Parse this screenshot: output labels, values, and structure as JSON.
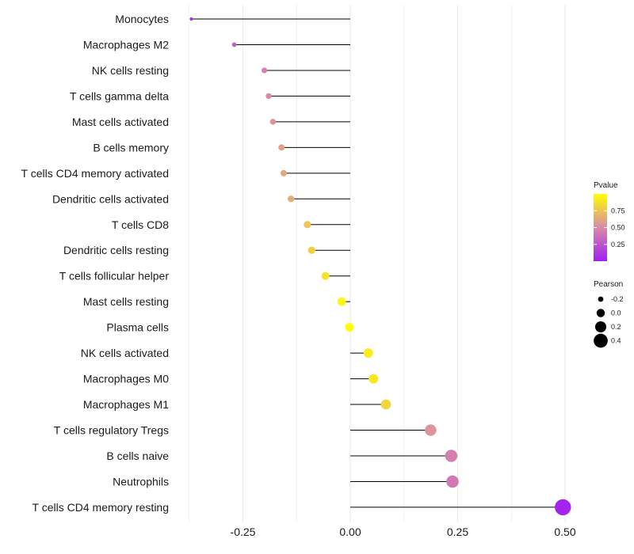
{
  "chart_data": {
    "type": "lollipop",
    "title": "",
    "xlabel": "",
    "ylabel": "",
    "xlim": [
      -0.375,
      0.5
    ],
    "x_ticks": [
      -0.25,
      0.0,
      0.25,
      0.5
    ],
    "x_tick_labels": [
      "-0.25",
      "0.00",
      "0.25",
      "0.50"
    ],
    "grid": true,
    "categories": [
      "Monocytes",
      "Macrophages M2",
      "NK cells resting",
      "T cells gamma delta",
      "Mast cells activated",
      "B cells memory",
      "T cells CD4 memory activated",
      "Dendritic cells activated",
      "T cells CD8",
      "Dendritic cells resting",
      "T cells follicular helper",
      "Mast cells resting",
      "Plasma cells",
      "NK cells activated",
      "Macrophages M0",
      "Macrophages M1",
      "T cells regulatory  Tregs ",
      "B cells naive",
      "Neutrophils",
      "T cells CD4 memory resting"
    ],
    "pearson": [
      -0.37,
      -0.27,
      -0.2,
      -0.19,
      -0.18,
      -0.16,
      -0.155,
      -0.138,
      -0.1,
      -0.09,
      -0.058,
      -0.02,
      -0.002,
      0.042,
      0.054,
      0.083,
      0.187,
      0.235,
      0.238,
      0.495
    ],
    "pvalue": [
      0.05,
      0.3,
      0.45,
      0.5,
      0.55,
      0.6,
      0.62,
      0.65,
      0.75,
      0.8,
      0.88,
      0.96,
      1.0,
      0.92,
      0.9,
      0.82,
      0.55,
      0.45,
      0.42,
      0.02
    ],
    "legend_color": {
      "title": "Pvalue",
      "ticks": [
        0.25,
        0.5,
        0.75
      ],
      "tick_labels": [
        "0.25",
        "0.50",
        "0.75"
      ],
      "range": [
        0.0,
        1.0
      ],
      "colors": [
        "#a020f0",
        "#d98aa8",
        "#ffff00"
      ]
    },
    "legend_size": {
      "title": "Pearson",
      "values": [
        -0.2,
        0.0,
        0.2,
        0.4
      ],
      "labels": [
        "-0.2",
        "0.0",
        "0.2",
        "0.4"
      ]
    },
    "legend_position": "right"
  }
}
